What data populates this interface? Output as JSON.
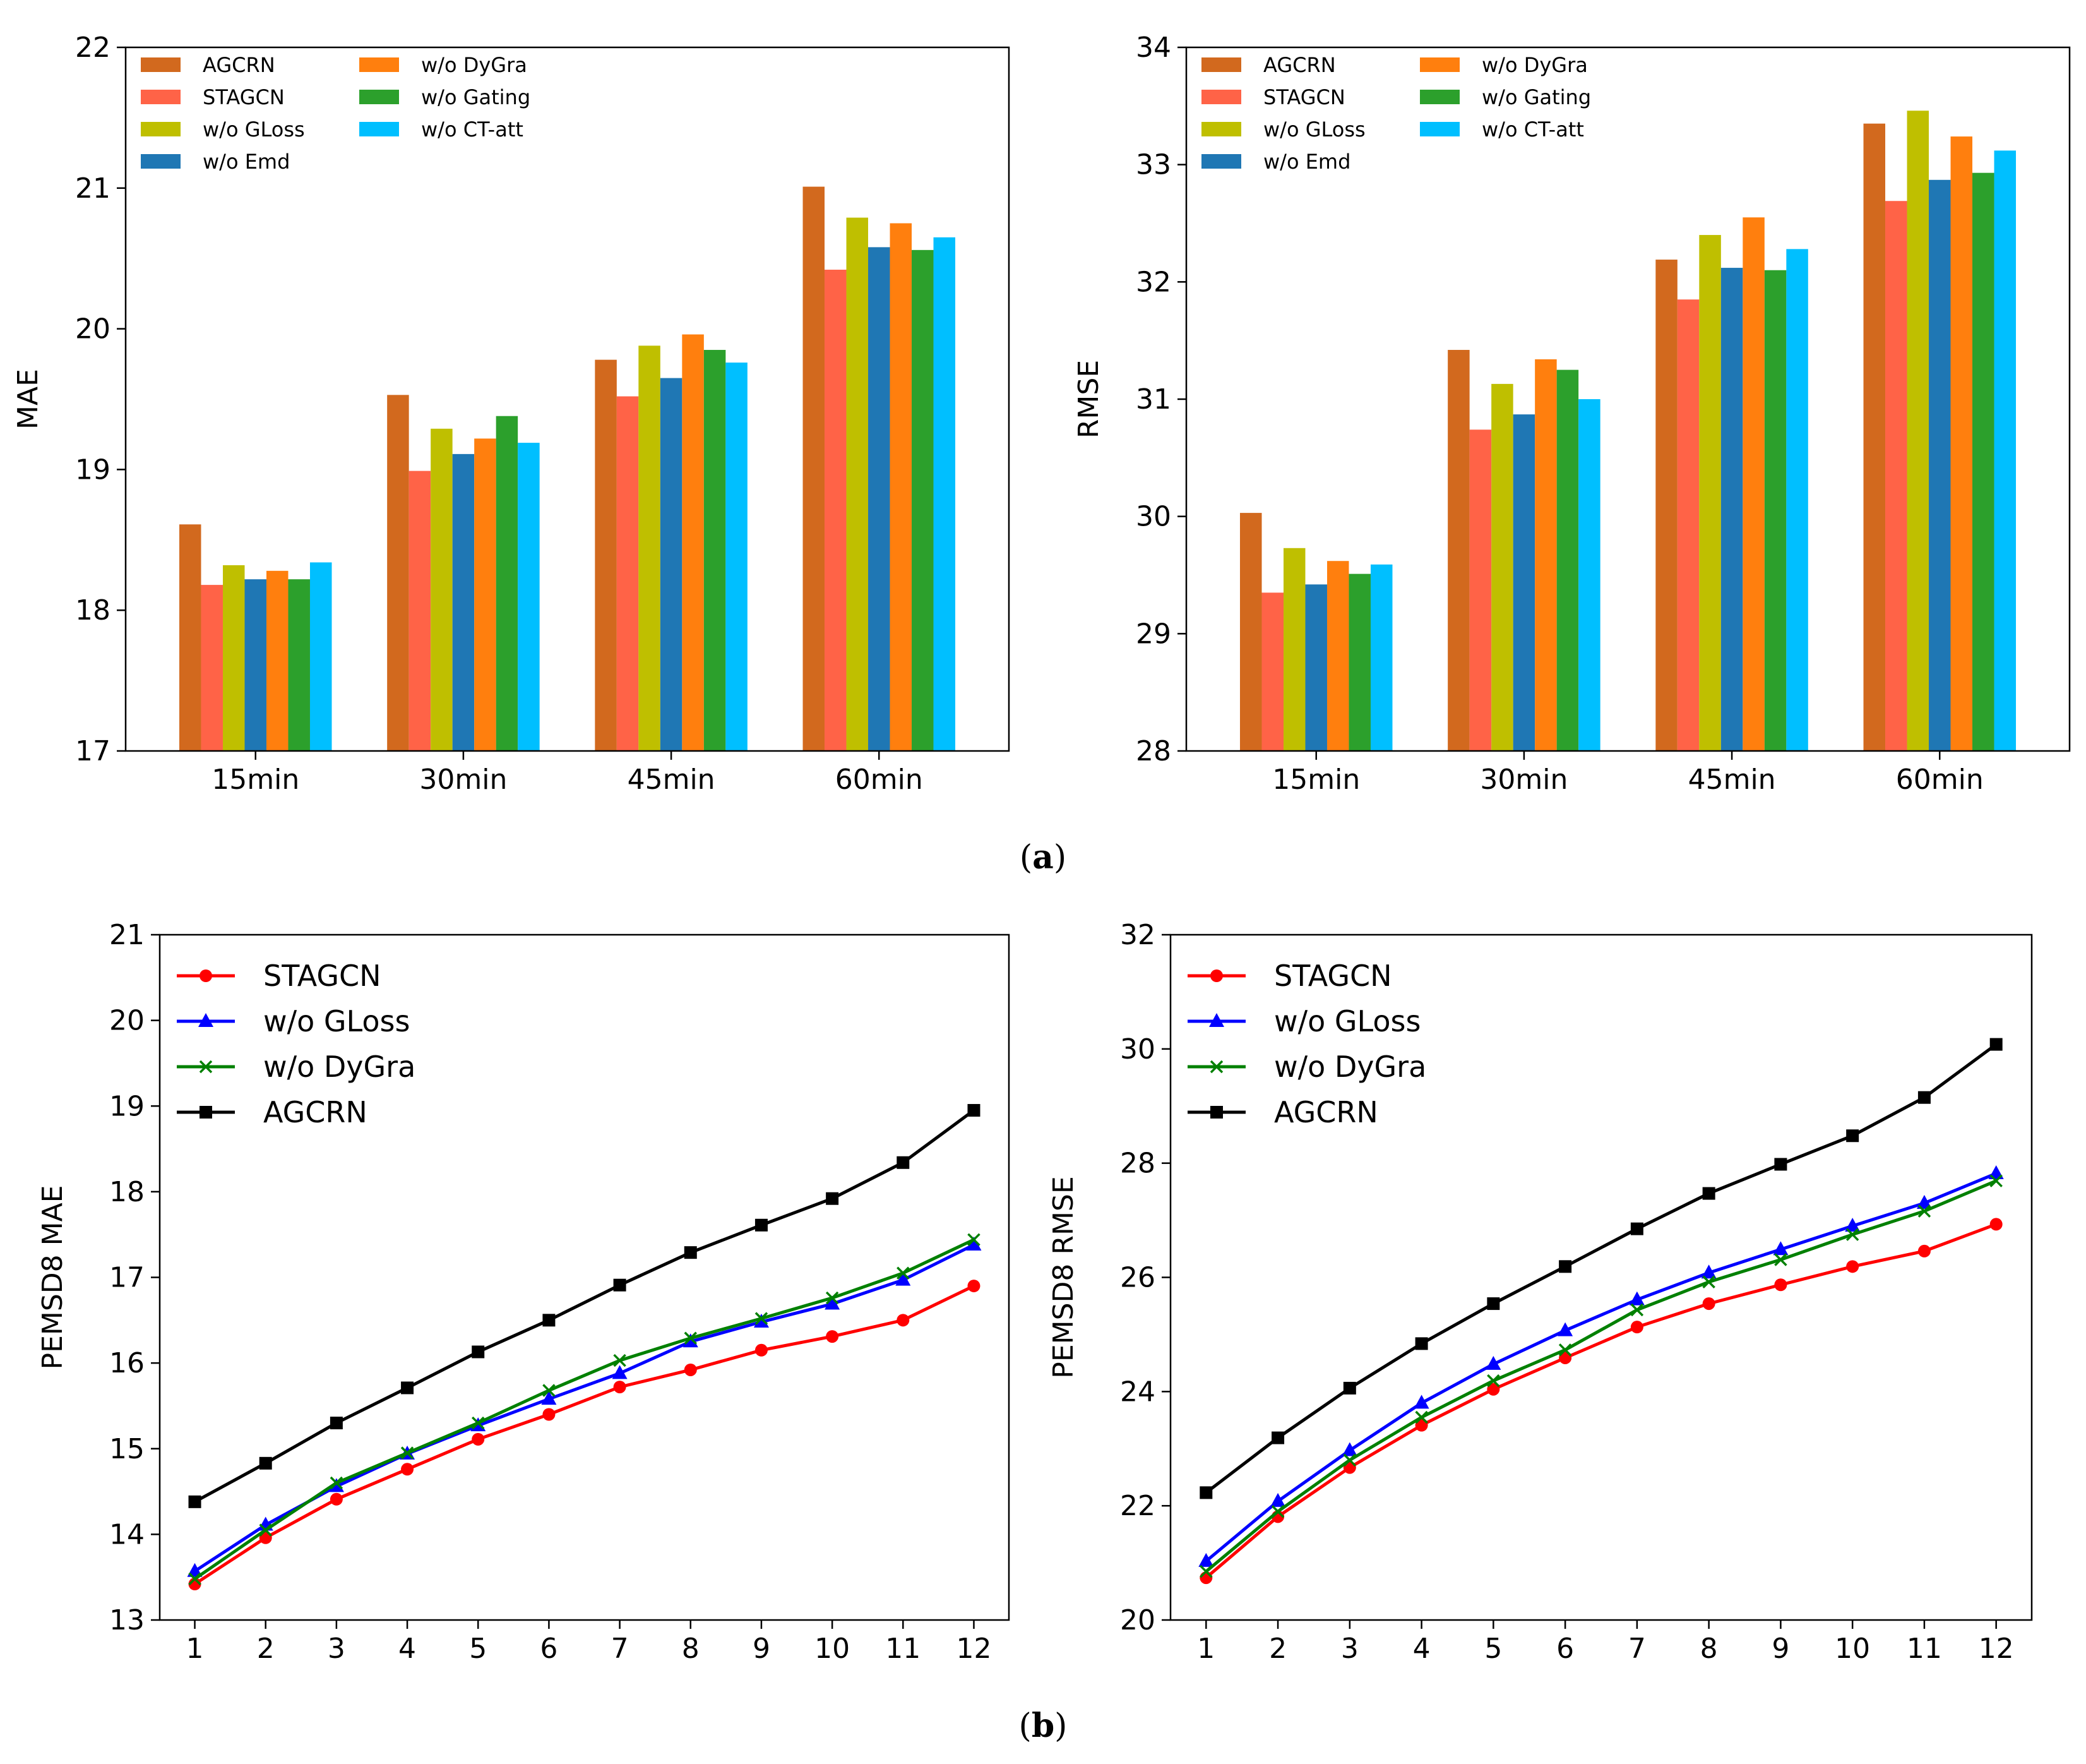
{
  "captions": {
    "a_open": "(",
    "a_letter": "a",
    "a_close": ")",
    "b_open": "(",
    "b_letter": "b",
    "b_close": ")"
  },
  "colors": {
    "AGCRN_bar": "#d2691e",
    "STAGCN_bar": "#ff6347",
    "GLoss_bar": "#bfbf00",
    "Emd_bar": "#1f77b4",
    "DyGra_bar": "#ff7f0e",
    "Gating_bar": "#2ca02c",
    "CTatt_bar": "#00bfff",
    "STAGCN_line": "#ff0000",
    "GLoss_line": "#0000ff",
    "DyGra_line": "#008000",
    "AGCRN_line": "#000000"
  },
  "chart_data": [
    {
      "id": "mae_bar",
      "type": "bar",
      "ylabel": "MAE",
      "xlabel": "",
      "ylim": [
        17,
        22
      ],
      "yticks": [
        17,
        18,
        19,
        20,
        21,
        22
      ],
      "categories": [
        "15min",
        "30min",
        "45min",
        "60min"
      ],
      "legend_position": "top-left",
      "series": [
        {
          "name": "AGCRN",
          "color_key": "AGCRN_bar",
          "values": [
            18.61,
            19.53,
            19.78,
            21.01
          ]
        },
        {
          "name": "STAGCN",
          "color_key": "STAGCN_bar",
          "values": [
            18.18,
            18.99,
            19.52,
            20.42
          ]
        },
        {
          "name": "w/o GLoss",
          "color_key": "GLoss_bar",
          "values": [
            18.32,
            19.29,
            19.88,
            20.79
          ]
        },
        {
          "name": "w/o Emd",
          "color_key": "Emd_bar",
          "values": [
            18.22,
            19.11,
            19.65,
            20.58
          ]
        },
        {
          "name": "w/o DyGra",
          "color_key": "DyGra_bar",
          "values": [
            18.28,
            19.22,
            19.96,
            20.75
          ]
        },
        {
          "name": "w/o Gating",
          "color_key": "Gating_bar",
          "values": [
            18.22,
            19.38,
            19.85,
            20.56
          ]
        },
        {
          "name": "w/o CT-att",
          "color_key": "CTatt_bar",
          "values": [
            18.34,
            19.19,
            19.76,
            20.65
          ]
        }
      ]
    },
    {
      "id": "rmse_bar",
      "type": "bar",
      "ylabel": "RMSE",
      "xlabel": "",
      "ylim": [
        28,
        34
      ],
      "yticks": [
        28,
        29,
        30,
        31,
        32,
        33,
        34
      ],
      "categories": [
        "15min",
        "30min",
        "45min",
        "60min"
      ],
      "legend_position": "top-left",
      "series": [
        {
          "name": "AGCRN",
          "color_key": "AGCRN_bar",
          "values": [
            30.03,
            31.42,
            32.19,
            33.35
          ]
        },
        {
          "name": "STAGCN",
          "color_key": "STAGCN_bar",
          "values": [
            29.35,
            30.74,
            31.85,
            32.69
          ]
        },
        {
          "name": "w/o GLoss",
          "color_key": "GLoss_bar",
          "values": [
            29.73,
            31.13,
            32.4,
            33.46
          ]
        },
        {
          "name": "w/o Emd",
          "color_key": "Emd_bar",
          "values": [
            29.42,
            30.87,
            32.12,
            32.87
          ]
        },
        {
          "name": "w/o DyGra",
          "color_key": "DyGra_bar",
          "values": [
            29.62,
            31.34,
            32.55,
            33.24
          ]
        },
        {
          "name": "w/o Gating",
          "color_key": "Gating_bar",
          "values": [
            29.51,
            31.25,
            32.1,
            32.93
          ]
        },
        {
          "name": "w/o CT-att",
          "color_key": "CTatt_bar",
          "values": [
            29.59,
            31.0,
            32.28,
            33.12
          ]
        }
      ]
    },
    {
      "id": "mae_line",
      "type": "line",
      "ylabel": "PEMSD8 MAE",
      "xlabel": "",
      "ylim": [
        13,
        21
      ],
      "yticks": [
        13,
        14,
        15,
        16,
        17,
        18,
        19,
        20,
        21
      ],
      "x": [
        1,
        2,
        3,
        4,
        5,
        6,
        7,
        8,
        9,
        10,
        11,
        12
      ],
      "legend_position": "top-left",
      "series": [
        {
          "name": "STAGCN",
          "color_key": "STAGCN_line",
          "marker": "circle",
          "values": [
            13.42,
            13.96,
            14.41,
            14.76,
            15.11,
            15.4,
            15.72,
            15.92,
            16.15,
            16.31,
            16.5,
            16.9
          ]
        },
        {
          "name": "w/o GLoss",
          "color_key": "GLoss_line",
          "marker": "triangle",
          "values": [
            13.57,
            14.11,
            14.56,
            14.94,
            15.27,
            15.58,
            15.88,
            16.25,
            16.48,
            16.69,
            16.97,
            17.38
          ]
        },
        {
          "name": "w/o DyGra",
          "color_key": "DyGra_line",
          "marker": "x",
          "values": [
            13.48,
            14.05,
            14.6,
            14.95,
            15.3,
            15.68,
            16.03,
            16.29,
            16.52,
            16.76,
            17.05,
            17.44
          ]
        },
        {
          "name": "AGCRN",
          "color_key": "AGCRN_line",
          "marker": "square",
          "values": [
            14.38,
            14.83,
            15.3,
            15.71,
            16.13,
            16.5,
            16.91,
            17.29,
            17.61,
            17.92,
            18.34,
            18.95
          ]
        }
      ]
    },
    {
      "id": "rmse_line",
      "type": "line",
      "ylabel": "PEMSD8 RMSE",
      "xlabel": "",
      "ylim": [
        20,
        32
      ],
      "yticks": [
        20,
        22,
        24,
        26,
        28,
        30,
        32
      ],
      "x": [
        1,
        2,
        3,
        4,
        5,
        6,
        7,
        8,
        9,
        10,
        11,
        12
      ],
      "legend_position": "top-left",
      "series": [
        {
          "name": "STAGCN",
          "color_key": "STAGCN_line",
          "marker": "circle",
          "values": [
            20.74,
            21.81,
            22.67,
            23.41,
            24.04,
            24.59,
            25.13,
            25.54,
            25.87,
            26.19,
            26.46,
            26.93
          ]
        },
        {
          "name": "w/o GLoss",
          "color_key": "GLoss_line",
          "marker": "triangle",
          "values": [
            21.03,
            22.08,
            22.97,
            23.8,
            24.48,
            25.07,
            25.61,
            26.08,
            26.49,
            26.9,
            27.3,
            27.82
          ]
        },
        {
          "name": "w/o DyGra",
          "color_key": "DyGra_line",
          "marker": "x",
          "values": [
            20.85,
            21.9,
            22.8,
            23.55,
            24.19,
            24.73,
            25.43,
            25.92,
            26.31,
            26.75,
            27.16,
            27.69
          ]
        },
        {
          "name": "AGCRN",
          "color_key": "AGCRN_line",
          "marker": "square",
          "values": [
            22.23,
            23.19,
            24.06,
            24.84,
            25.54,
            26.19,
            26.85,
            27.47,
            27.98,
            28.48,
            29.15,
            30.08
          ]
        }
      ]
    }
  ]
}
